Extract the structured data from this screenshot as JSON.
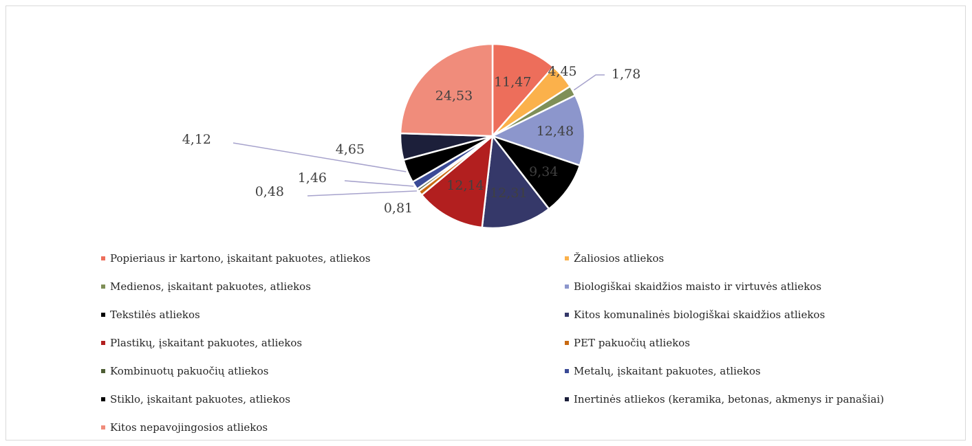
{
  "chart_data": {
    "type": "pie",
    "title": "",
    "legend_position": "bottom",
    "slices": [
      {
        "label": "Popieriaus ir kartono, įskaitant pakuotes, atliekos",
        "value": 11.47,
        "display": "11,47",
        "color": "#ed6e5b"
      },
      {
        "label": "Žaliosios atliekos",
        "value": 4.45,
        "display": "4,45",
        "color": "#fbb14b"
      },
      {
        "label": "Medienos, įskaitant pakuotes, atliekos",
        "value": 1.78,
        "display": "1,78",
        "color": "#7f8f57"
      },
      {
        "label": "Biologiškai skaidžios maisto ir virtuvės atliekos",
        "value": 12.48,
        "display": "12,48",
        "color": "#8c96cc"
      },
      {
        "label": "Tekstilės atliekos",
        "value": 9.34,
        "display": "9,34",
        "color": "#000000"
      },
      {
        "label": "Kitos komunalinės biologiškai skaidžios atliekos",
        "value": 12.31,
        "display": "12,31",
        "color": "#353869"
      },
      {
        "label": "Plastikų, įskaitant pakuotes, atliekos",
        "value": 12.14,
        "display": "12,14",
        "color": "#b21f1f"
      },
      {
        "label": "PET pakuočių atliekos",
        "value": 0.81,
        "display": "0,81",
        "color": "#c86a12"
      },
      {
        "label": "Kombinuotų pakuočių atliekos",
        "value": 0.48,
        "display": "0,48",
        "color": "#4e5e34"
      },
      {
        "label": "Metalų, įskaitant pakuotes, atliekos",
        "value": 1.46,
        "display": "1,46",
        "color": "#3a4a96"
      },
      {
        "label": "Stiklo, įskaitant pakuotes, atliekos",
        "value": 4.12,
        "display": "4,12",
        "color": "#000000"
      },
      {
        "label": "Inertinės atliekos (keramika, betonas, akmenys ir panašiai)",
        "value": 4.65,
        "display": "4,65",
        "color": "#1c1f3a"
      },
      {
        "label": "Kitos nepavojingosios atliekos",
        "value": 24.53,
        "display": "24,53",
        "color": "#f08c7b"
      }
    ]
  }
}
